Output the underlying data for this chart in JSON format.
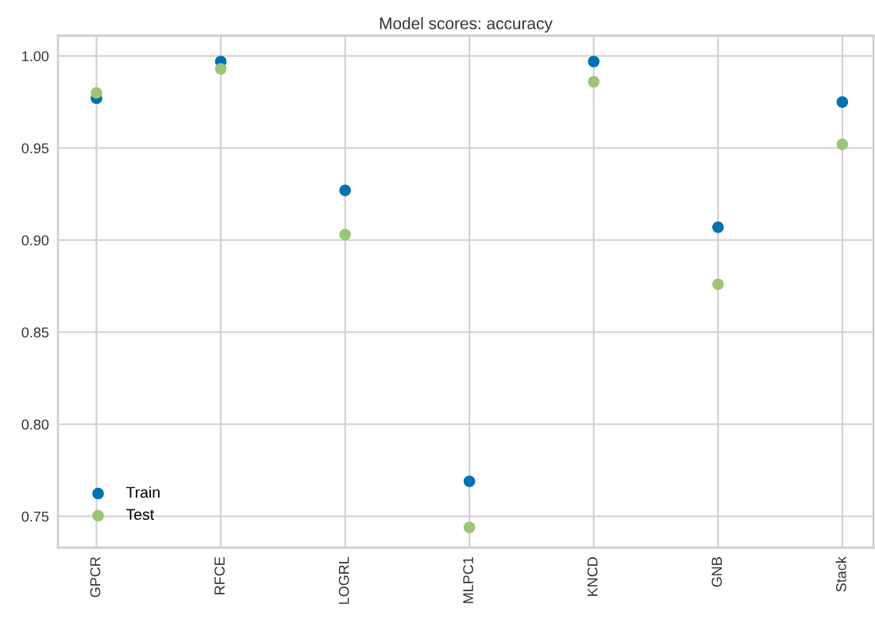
{
  "chart_data": {
    "type": "scatter",
    "title": "Model scores: accuracy",
    "categories": [
      "GPCR",
      "RFCE",
      "LOGRL",
      "MLPC1",
      "KNCD",
      "GNB",
      "Stack"
    ],
    "series": [
      {
        "name": "Train",
        "color": "#0072b2",
        "values": [
          0.977,
          0.997,
          0.927,
          0.769,
          0.997,
          0.907,
          0.975
        ]
      },
      {
        "name": "Test",
        "color": "#9cc676",
        "values": [
          0.98,
          0.993,
          0.903,
          0.744,
          0.986,
          0.876,
          0.952
        ]
      }
    ],
    "ylim": [
      0.733,
      1.011
    ],
    "yticks": [
      {
        "value": 0.75,
        "label": "0.75"
      },
      {
        "value": 0.8,
        "label": "0.80"
      },
      {
        "value": 0.85,
        "label": "0.85"
      },
      {
        "value": 0.9,
        "label": "0.90"
      },
      {
        "value": 0.95,
        "label": "0.95"
      },
      {
        "value": 1.0,
        "label": "1.00"
      }
    ],
    "grid": true,
    "legend": "bottom left",
    "marker": "circle"
  }
}
